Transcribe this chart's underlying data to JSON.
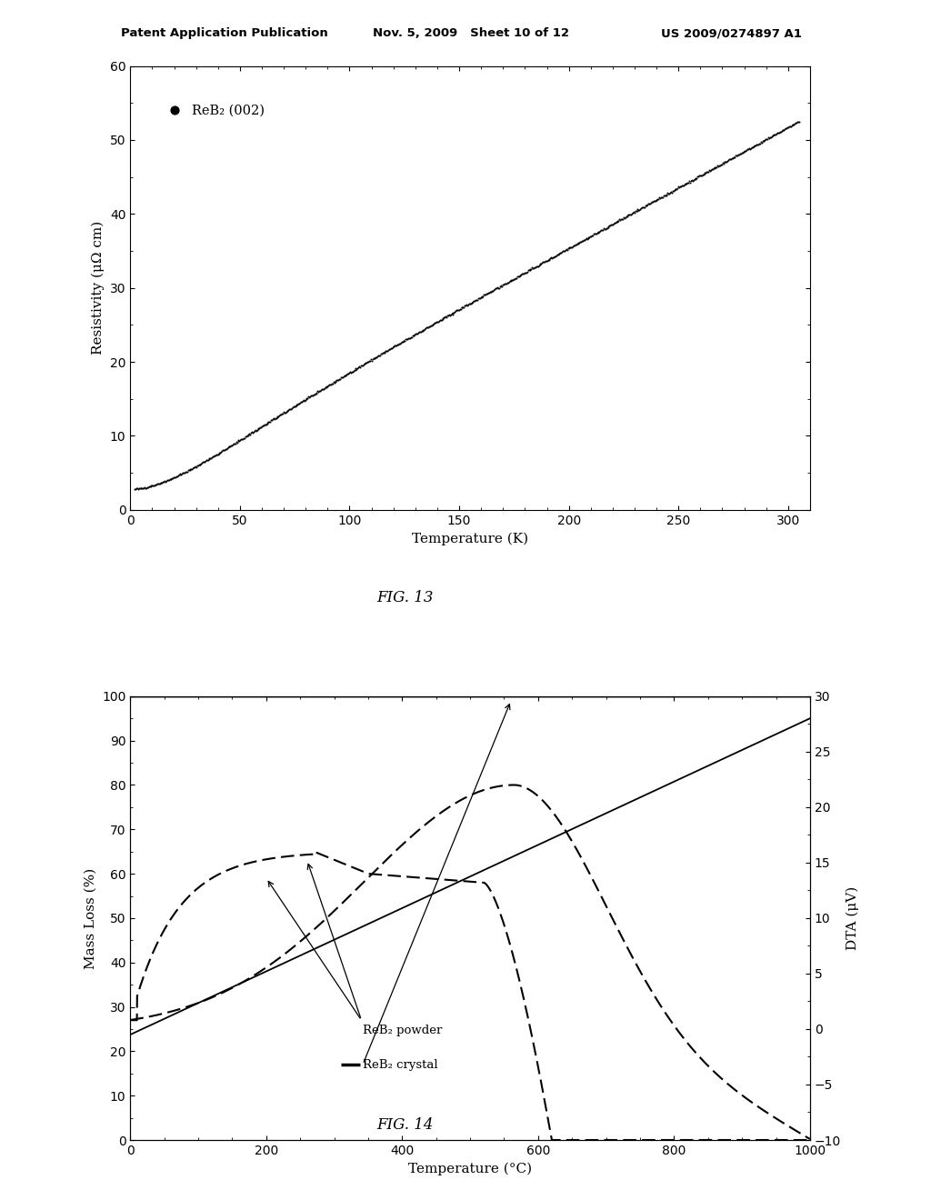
{
  "header_left": "Patent Application Publication",
  "header_mid": "Nov. 5, 2009   Sheet 10 of 12",
  "header_right": "US 2009/0274897 A1",
  "fig13_title": "FIG. 13",
  "fig14_title": "FIG. 14",
  "fig13": {
    "xlabel": "Temperature (K)",
    "ylabel": "Resistivity (μΩ cm)",
    "legend_label": "ReB₂ (002)",
    "xlim": [
      0,
      310
    ],
    "ylim": [
      0,
      60
    ],
    "xticks": [
      0,
      50,
      100,
      150,
      200,
      250,
      300
    ],
    "yticks": [
      0,
      10,
      20,
      30,
      40,
      50,
      60
    ]
  },
  "fig14": {
    "xlabel": "Temperature (°C)",
    "ylabel_left": "Mass Loss (%)",
    "ylabel_right": "DTA (μV)",
    "xlim": [
      0,
      1000
    ],
    "ylim_left": [
      0,
      100
    ],
    "ylim_right": [
      -10,
      30
    ],
    "xticks": [
      0,
      200,
      400,
      600,
      800,
      1000
    ],
    "yticks_left": [
      0,
      10,
      20,
      30,
      40,
      50,
      60,
      70,
      80,
      90,
      100
    ],
    "yticks_right": [
      -10,
      -5,
      0,
      5,
      10,
      15,
      20,
      25,
      30
    ],
    "legend_powder": "ReB₂ powder",
    "legend_crystal": "ReB₂ crystal"
  }
}
